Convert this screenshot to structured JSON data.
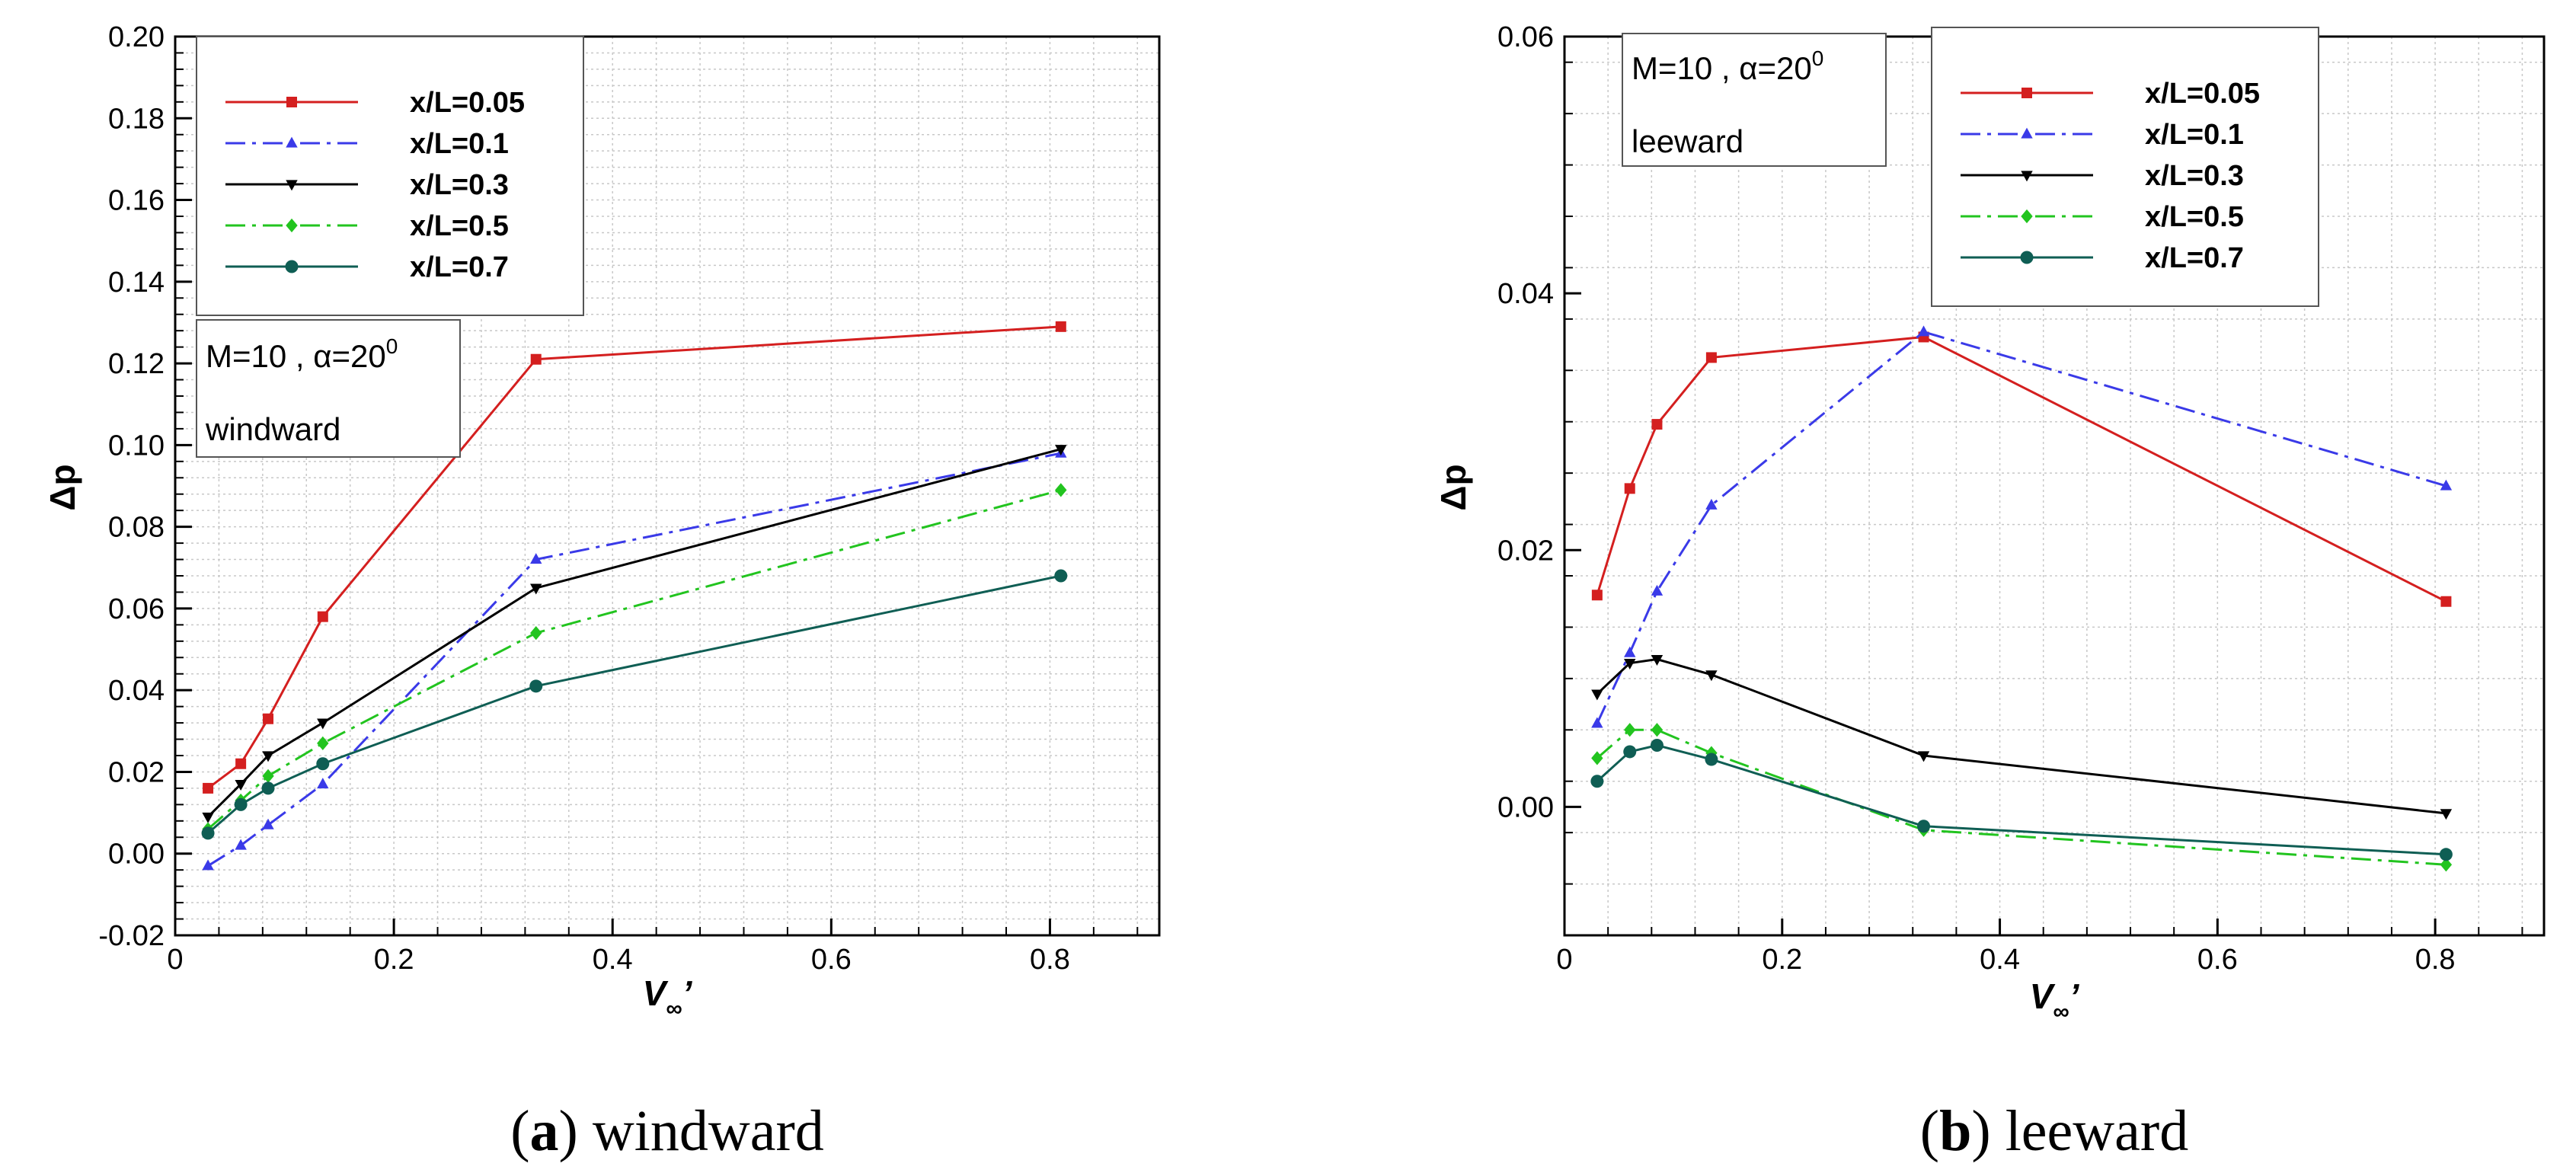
{
  "chart_data": [
    {
      "type": "line",
      "caption_label": "a",
      "caption_text": "windward",
      "x": [
        0.03,
        0.06,
        0.085,
        0.135,
        0.33,
        0.81
      ],
      "xlim": [
        0,
        0.9
      ],
      "ylim": [
        -0.02,
        0.2
      ],
      "xticks": [
        0,
        0.2,
        0.4,
        0.6,
        0.8
      ],
      "xtick_labels": [
        "0",
        "0.2",
        "0.4",
        "0.6",
        "0.8"
      ],
      "yticks": [
        -0.02,
        0,
        0.02,
        0.04,
        0.06,
        0.08,
        0.1,
        0.12,
        0.14,
        0.16,
        0.18,
        0.2
      ],
      "ytick_labels": [
        "-0.02",
        "0.00",
        "0.02",
        "0.04",
        "0.06",
        "0.08",
        "0.10",
        "0.12",
        "0.14",
        "0.16",
        "0.18",
        "0.20"
      ],
      "xlabel": "V",
      "xlabel_sub": "∞",
      "xlabel_prime": "’",
      "ylabel": "Δp",
      "annotation": {
        "line1_prefix": "M=10 , α=20",
        "line1_sup": "0",
        "line2": "windward"
      },
      "legend_position": "top-left",
      "series": [
        {
          "name": "x/L=0.05",
          "values": [
            0.016,
            0.022,
            0.033,
            0.058,
            0.121,
            0.129
          ]
        },
        {
          "name": "x/L=0.1",
          "values": [
            -0.003,
            0.002,
            0.007,
            0.017,
            0.072,
            0.098
          ]
        },
        {
          "name": "x/L=0.3",
          "values": [
            0.009,
            0.017,
            0.024,
            0.032,
            0.065,
            0.099
          ]
        },
        {
          "name": "x/L=0.5",
          "values": [
            0.006,
            0.013,
            0.019,
            0.027,
            0.054,
            0.089
          ]
        },
        {
          "name": "x/L=0.7",
          "values": [
            0.005,
            0.012,
            0.016,
            0.022,
            0.041,
            0.068
          ]
        }
      ]
    },
    {
      "type": "line",
      "caption_label": "b",
      "caption_text": "leeward",
      "x": [
        0.03,
        0.06,
        0.085,
        0.135,
        0.33,
        0.81
      ],
      "xlim": [
        0,
        0.9
      ],
      "ylim": [
        -0.01,
        0.06
      ],
      "xticks": [
        0,
        0.2,
        0.4,
        0.6,
        0.8
      ],
      "xtick_labels": [
        "0",
        "0.2",
        "0.4",
        "0.6",
        "0.8"
      ],
      "yticks": [
        0,
        0.02,
        0.04,
        0.06
      ],
      "ytick_labels": [
        "0.00",
        "0.02",
        "0.04",
        "0.06"
      ],
      "xlabel": "V",
      "xlabel_sub": "∞",
      "xlabel_prime": "’",
      "ylabel": "Δp",
      "annotation": {
        "line1_prefix": "M=10 , α=20",
        "line1_sup": "0",
        "line2": "leeward"
      },
      "legend_position": "top-center",
      "series": [
        {
          "name": "x/L=0.05",
          "values": [
            0.0165,
            0.0248,
            0.0298,
            0.035,
            0.0366,
            0.016
          ]
        },
        {
          "name": "x/L=0.1",
          "values": [
            0.0065,
            0.012,
            0.0168,
            0.0235,
            0.037,
            0.025
          ]
        },
        {
          "name": "x/L=0.3",
          "values": [
            0.0088,
            0.0112,
            0.0115,
            0.0103,
            0.004,
            -0.0005
          ]
        },
        {
          "name": "x/L=0.5",
          "values": [
            0.0038,
            0.006,
            0.006,
            0.0042,
            -0.0018,
            -0.0045
          ]
        },
        {
          "name": "x/L=0.7",
          "values": [
            0.002,
            0.0043,
            0.0048,
            0.0037,
            -0.0015,
            -0.0037
          ]
        }
      ]
    }
  ],
  "styles": [
    {
      "color": "#d41f1f",
      "dash": "",
      "marker": "square"
    },
    {
      "color": "#3a3ae8",
      "dash": "26,9,5,9",
      "marker": "triangle-up"
    },
    {
      "color": "#000000",
      "dash": "",
      "marker": "triangle-down"
    },
    {
      "color": "#22c41f",
      "dash": "26,9,5,9",
      "marker": "diamond"
    },
    {
      "color": "#0f5e54",
      "dash": "",
      "marker": "circle"
    }
  ]
}
